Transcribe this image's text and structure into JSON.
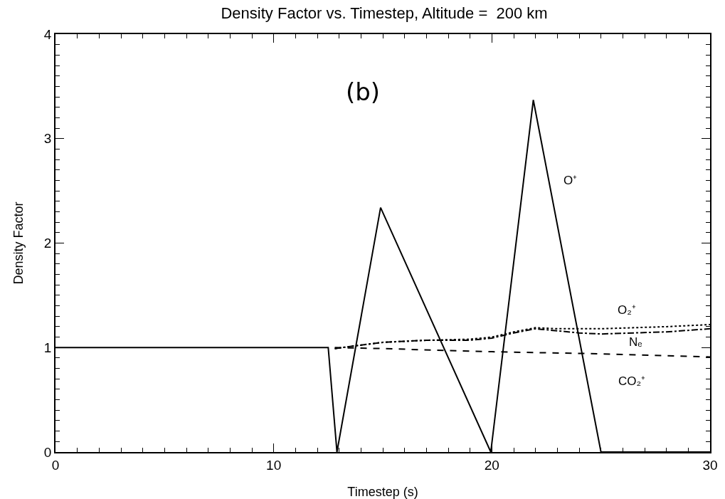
{
  "chart_data": {
    "type": "line",
    "title": "Density Factor vs. Timestep, Altitude =  200 km",
    "xlabel": "Timestep (s)",
    "ylabel": "Density Factor",
    "annotations": [
      "(b)"
    ],
    "xlim": [
      0,
      30
    ],
    "xticks": [
      0,
      10,
      20,
      30
    ],
    "ylim": [
      0,
      4
    ],
    "yticks": [
      0,
      1,
      2,
      3,
      4
    ],
    "grid": false,
    "legend": false,
    "marker": "none",
    "series": [
      {
        "name": "O⁺",
        "color": "#000000",
        "line_style": "solid",
        "x": [
          0,
          12.5,
          12.9,
          14.9,
          19.95,
          21.9,
          25,
          30
        ],
        "values": [
          1,
          1,
          0,
          2.34,
          0,
          3.37,
          0,
          0
        ]
      },
      {
        "name": "O₂⁺",
        "color": "#000000",
        "line_style": "dotted",
        "x": [
          12.8,
          13.5,
          15,
          17,
          19,
          20,
          21,
          22,
          23,
          25,
          28,
          30
        ],
        "values": [
          0.99,
          1.01,
          1.05,
          1.07,
          1.08,
          1.1,
          1.15,
          1.19,
          1.18,
          1.18,
          1.2,
          1.22
        ]
      },
      {
        "name": "Nₑ",
        "color": "#000000",
        "line_style": "dashdot",
        "x": [
          12.8,
          13.5,
          15,
          17,
          19,
          20,
          21,
          22,
          23,
          24,
          25,
          28,
          30
        ],
        "values": [
          0.99,
          1.01,
          1.05,
          1.07,
          1.07,
          1.09,
          1.14,
          1.18,
          1.16,
          1.14,
          1.13,
          1.15,
          1.18
        ]
      },
      {
        "name": "CO₂⁺",
        "color": "#000000",
        "line_style": "dashed",
        "x": [
          12.8,
          15,
          20,
          25,
          30
        ],
        "values": [
          1.0,
          0.99,
          0.96,
          0.94,
          0.91
        ]
      }
    ]
  }
}
